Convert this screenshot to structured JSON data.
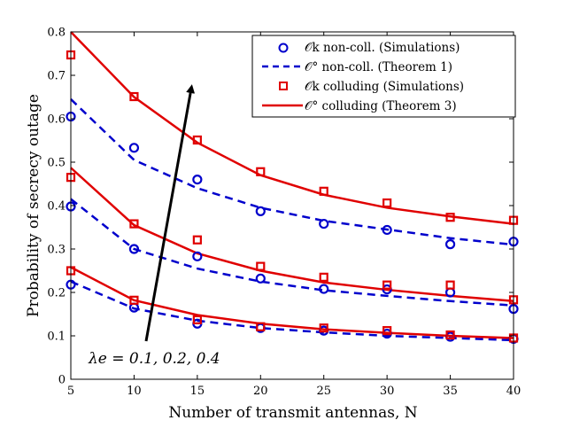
{
  "chart_data": {
    "type": "line",
    "xlabel": "Number of transmit antennas, N",
    "ylabel": "Probability of secrecy outage",
    "xlim": [
      5,
      40
    ],
    "ylim": [
      0,
      0.8
    ],
    "xticks": [
      5,
      10,
      15,
      20,
      25,
      30,
      35,
      40
    ],
    "yticks": [
      0,
      0.1,
      0.2,
      0.3,
      0.4,
      0.5,
      0.6,
      0.7,
      0.8
    ],
    "xtick_labels": [
      "5",
      "10",
      "15",
      "20",
      "25",
      "30",
      "35",
      "40"
    ],
    "ytick_labels": [
      "0",
      "0.1",
      "0.2",
      "0.3",
      "0.4",
      "0.5",
      "0.6",
      "0.7",
      "0.8"
    ],
    "legend": [
      {
        "label": "𝒪k non-coll. (Simulations)",
        "marker": "circle",
        "color": "#0000cc"
      },
      {
        "label": "𝒪° non-coll. (Theorem 1)",
        "line": "dashed",
        "color": "#0000cc"
      },
      {
        "label": "𝒪k colluding (Simulations)",
        "marker": "square",
        "color": "#e00000"
      },
      {
        "label": "𝒪° colluding (Theorem 3)",
        "line": "solid",
        "color": "#e00000"
      }
    ],
    "annotation": "λe = 0.1, 0.2, 0.4",
    "x_sim": [
      5,
      10,
      15,
      20,
      25,
      30,
      35,
      40
    ],
    "x_theory": [
      5,
      10,
      15,
      20,
      25,
      30,
      35,
      40
    ],
    "series": [
      {
        "name": "non-coll. sim λe=0.1",
        "kind": "circle",
        "color": "#0000cc",
        "values": [
          0.218,
          0.165,
          0.128,
          0.118,
          0.112,
          0.105,
          0.098,
          0.093
        ]
      },
      {
        "name": "non-coll. sim λe=0.2",
        "kind": "circle",
        "color": "#0000cc",
        "values": [
          0.398,
          0.3,
          0.283,
          0.232,
          0.208,
          0.207,
          0.2,
          0.162
        ]
      },
      {
        "name": "non-coll. sim λe=0.4",
        "kind": "circle",
        "color": "#0000cc",
        "values": [
          0.605,
          0.533,
          0.46,
          0.387,
          0.358,
          0.344,
          0.311,
          0.317
        ]
      },
      {
        "name": "non-coll. theory λe=0.1",
        "kind": "dashed",
        "color": "#0000cc",
        "values": [
          0.225,
          0.163,
          0.135,
          0.118,
          0.108,
          0.1,
          0.095,
          0.09
        ]
      },
      {
        "name": "non-coll. theory λe=0.2",
        "kind": "dashed",
        "color": "#0000cc",
        "values": [
          0.415,
          0.3,
          0.255,
          0.225,
          0.205,
          0.192,
          0.18,
          0.17
        ]
      },
      {
        "name": "non-coll. theory λe=0.4",
        "kind": "dashed",
        "color": "#0000cc",
        "values": [
          0.645,
          0.505,
          0.44,
          0.395,
          0.365,
          0.345,
          0.325,
          0.31
        ]
      },
      {
        "name": "colluding sim λe=0.1",
        "kind": "square",
        "color": "#e00000",
        "values": [
          0.25,
          0.182,
          0.137,
          0.121,
          0.118,
          0.112,
          0.102,
          0.095
        ]
      },
      {
        "name": "colluding sim λe=0.2",
        "kind": "square",
        "color": "#e00000",
        "values": [
          0.465,
          0.358,
          0.321,
          0.26,
          0.235,
          0.217,
          0.217,
          0.183
        ]
      },
      {
        "name": "colluding sim λe=0.4",
        "kind": "square",
        "color": "#e00000",
        "values": [
          0.747,
          0.651,
          0.551,
          0.478,
          0.433,
          0.406,
          0.373,
          0.366
        ]
      },
      {
        "name": "colluding theory λe=0.1",
        "kind": "solid",
        "color": "#e00000",
        "values": [
          0.258,
          0.182,
          0.148,
          0.128,
          0.115,
          0.107,
          0.1,
          0.095
        ]
      },
      {
        "name": "colluding theory λe=0.2",
        "kind": "solid",
        "color": "#e00000",
        "values": [
          0.487,
          0.355,
          0.29,
          0.25,
          0.223,
          0.206,
          0.192,
          0.18
        ]
      },
      {
        "name": "colluding theory λe=0.4",
        "kind": "solid",
        "color": "#e00000",
        "values": [
          0.8,
          0.65,
          0.545,
          0.47,
          0.425,
          0.395,
          0.375,
          0.358
        ]
      }
    ]
  }
}
